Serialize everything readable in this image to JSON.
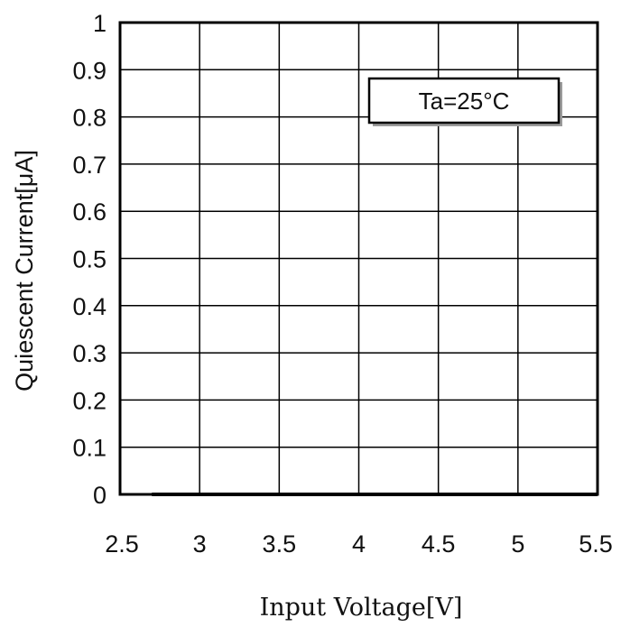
{
  "chart_data": {
    "type": "line",
    "title": "",
    "xlabel": "Input Voltage[V]",
    "ylabel": "Quiescent Current[μA]",
    "xlim": [
      2.5,
      5.5
    ],
    "ylim": [
      0,
      1
    ],
    "x_ticks": [
      2.5,
      3,
      3.5,
      4,
      4.5,
      5,
      5.5
    ],
    "x_tick_labels": [
      "2.5",
      "3",
      "3.5",
      "4",
      "4.5",
      "5",
      "5.5"
    ],
    "y_ticks": [
      0,
      0.1,
      0.2,
      0.3,
      0.4,
      0.5,
      0.6,
      0.7,
      0.8,
      0.9,
      1
    ],
    "y_tick_labels": [
      "0",
      "0.1",
      "0.2",
      "0.3",
      "0.4",
      "0.5",
      "0.6",
      "0.7",
      "0.8",
      "0.9",
      "1"
    ],
    "grid": true,
    "series": [
      {
        "x": [
          2.7,
          3.0,
          3.5,
          4.0,
          4.5,
          5.0,
          5.5
        ],
        "y": [
          0.0,
          0.0,
          0.0,
          0.0,
          0.0,
          0.0,
          0.0
        ],
        "color": "#000000"
      }
    ],
    "annotations": [
      {
        "text": "Ta=25°C",
        "position": "top-right"
      }
    ]
  }
}
